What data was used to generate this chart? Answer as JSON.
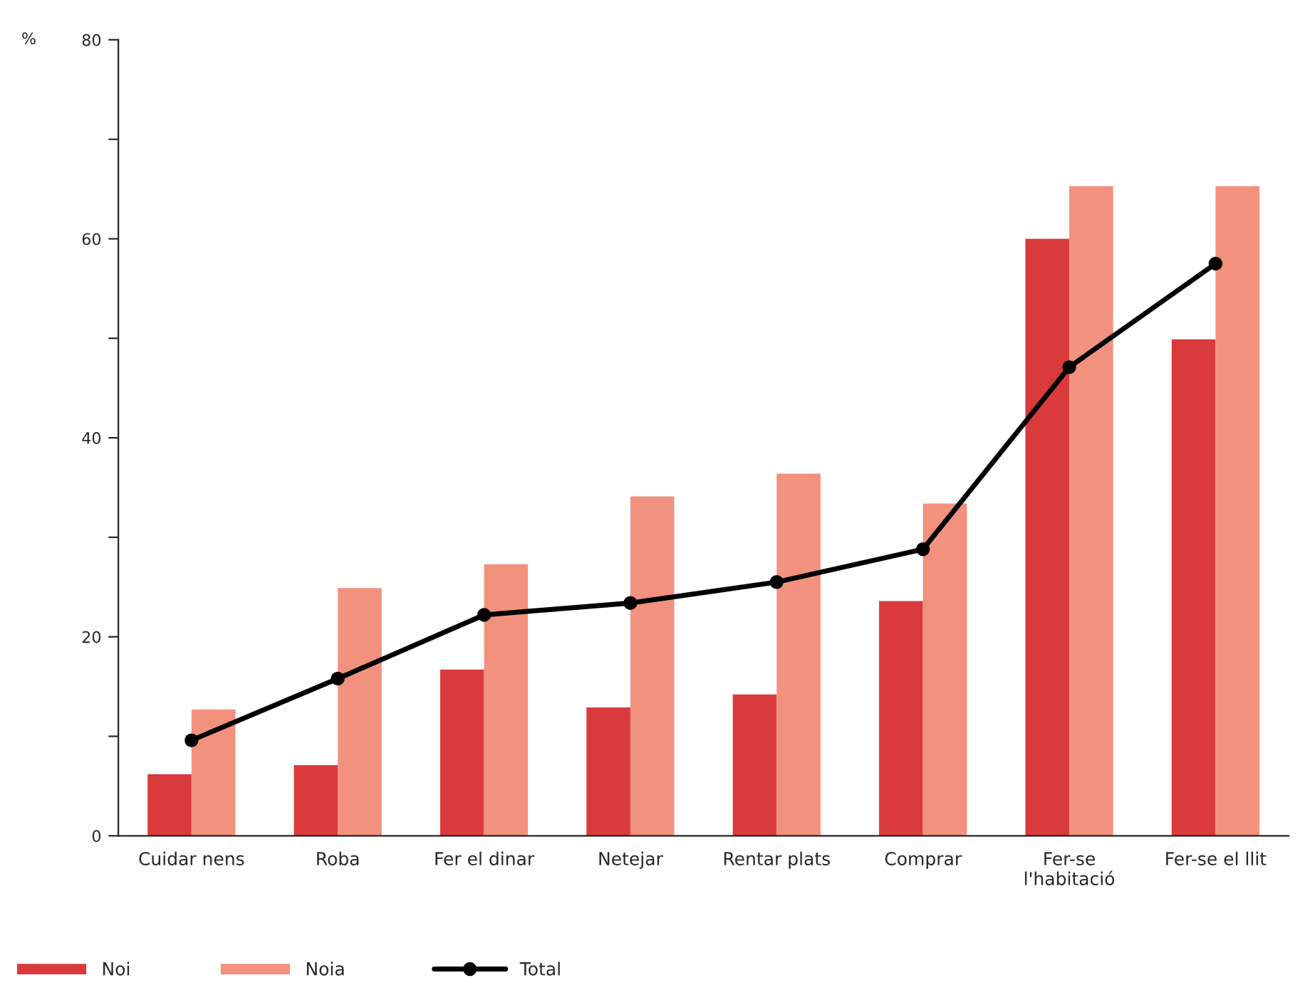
{
  "chart_data": {
    "type": "bar",
    "ylabel": "%",
    "categories": [
      "Cuidar nens",
      "Roba",
      "Fer el dinar",
      "Netejar",
      "Rentar plats",
      "Comprar",
      "Fer-se\nl'habitació",
      "Fer-se el llit"
    ],
    "series": [
      {
        "name": "Noi",
        "color": "#d93a3c",
        "values": [
          6.2,
          7.1,
          16.7,
          12.9,
          14.2,
          23.6,
          60.0,
          49.9
        ]
      },
      {
        "name": "Noia",
        "color": "#f2927e",
        "values": [
          12.7,
          24.9,
          27.3,
          34.1,
          36.4,
          33.4,
          65.3,
          65.3
        ]
      },
      {
        "name": "Total",
        "type": "line",
        "color": "#000000",
        "marker": "circle",
        "values": [
          9.6,
          15.8,
          22.2,
          23.4,
          25.5,
          28.8,
          47.1,
          57.5
        ]
      }
    ],
    "ylim": [
      0,
      80
    ],
    "yticks": [
      0,
      {
        "value": 10,
        "label": null
      },
      20,
      {
        "value": 30,
        "label": null
      },
      40,
      {
        "value": 50,
        "label": null
      },
      60,
      {
        "value": 70,
        "label": null
      },
      80
    ],
    "grid": false,
    "legend": "bottom left"
  }
}
